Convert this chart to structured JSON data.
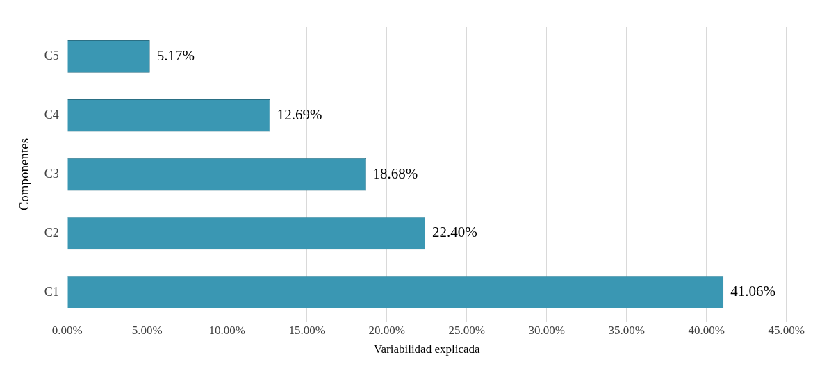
{
  "chart_data": {
    "type": "bar",
    "orientation": "horizontal",
    "xlabel": "Variabilidad explicada",
    "ylabel": "Componentes",
    "categories": [
      "C5",
      "C4",
      "C3",
      "C2",
      "C1"
    ],
    "values": [
      5.17,
      12.69,
      18.68,
      22.4,
      41.06
    ],
    "value_labels": [
      "5.17%",
      "12.69%",
      "18.68%",
      "22.40%",
      "41.06%"
    ],
    "color": "#3a97b3",
    "xlim": [
      0,
      45
    ],
    "xticks": [
      {
        "value": 0,
        "label": "0.00%"
      },
      {
        "value": 5,
        "label": "5.00%"
      },
      {
        "value": 10,
        "label": "10.00%"
      },
      {
        "value": 15,
        "label": "15.00%"
      },
      {
        "value": 20,
        "label": "20.00%"
      },
      {
        "value": 25,
        "label": "25.00%"
      },
      {
        "value": 30,
        "label": "30.00%"
      },
      {
        "value": 35,
        "label": "35.00%"
      },
      {
        "value": 40,
        "label": "40.00%"
      },
      {
        "value": 45,
        "label": "45.00%"
      }
    ],
    "grid": "x",
    "legend": false
  }
}
